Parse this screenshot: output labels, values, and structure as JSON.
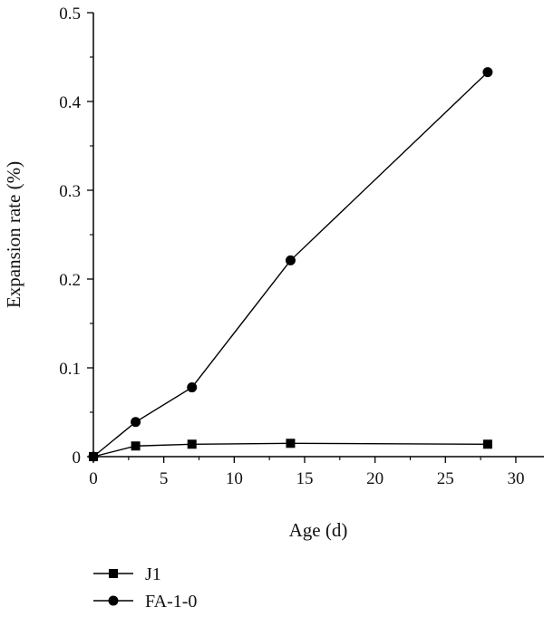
{
  "chart_data": {
    "type": "line",
    "title": "",
    "xlabel": "Age (d)",
    "ylabel": "Expansion rate (%)",
    "xlim": [
      0,
      32
    ],
    "ylim": [
      0,
      0.5
    ],
    "xticks": [
      "0",
      "5",
      "10",
      "15",
      "20",
      "25",
      "30"
    ],
    "yticks": [
      "0",
      "0.1",
      "0.2",
      "0.3",
      "0.4",
      "0.5"
    ],
    "grid": false,
    "legend_position": "bottom-left, below plot",
    "series": [
      {
        "name": "J1",
        "marker": "square",
        "color": "#000000",
        "x": [
          0,
          3,
          7,
          14,
          28
        ],
        "y": [
          0,
          0.012,
          0.014,
          0.015,
          0.014
        ]
      },
      {
        "name": "FA-1-0",
        "marker": "circle",
        "color": "#000000",
        "x": [
          0,
          3,
          7,
          14,
          28
        ],
        "y": [
          0,
          0.039,
          0.078,
          0.221,
          0.433
        ]
      }
    ]
  }
}
